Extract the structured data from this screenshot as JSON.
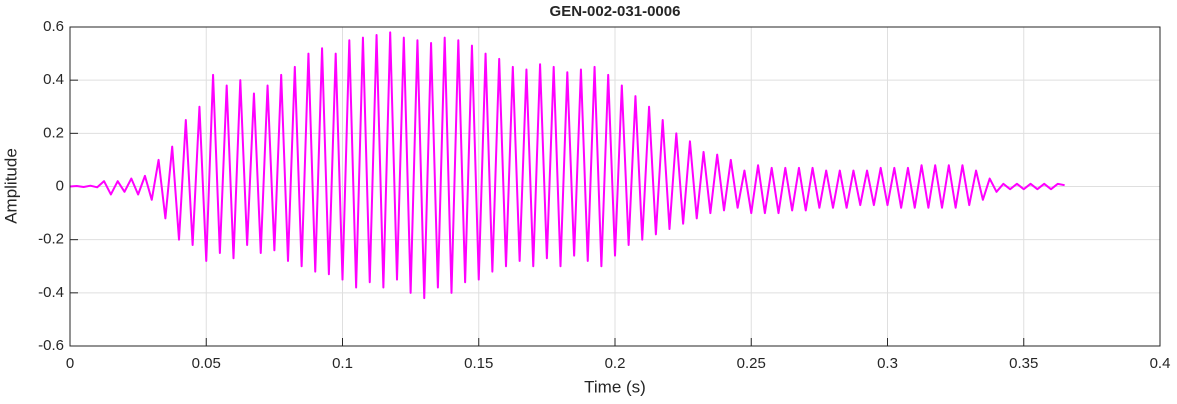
{
  "chart_data": {
    "type": "line",
    "title": "GEN-002-031-0006",
    "x_label": "Time (s)",
    "y_label": "Amplitude",
    "color": "#ff00ff",
    "grid": true,
    "xlim": [
      0,
      0.4
    ],
    "xticks": [
      0,
      0.05,
      0.1,
      0.15,
      0.2,
      0.25,
      0.3,
      0.35,
      0.4
    ],
    "ylim": [
      -0.6,
      0.6
    ],
    "yticks": [
      0.6,
      0.4,
      0.2,
      0,
      -0.2,
      -0.4,
      -0.6
    ],
    "x": [
      0,
      0.0025,
      0.005,
      0.0075,
      0.01,
      0.0125,
      0.015,
      0.0175,
      0.02,
      0.0225,
      0.025,
      0.0275,
      0.03,
      0.0325,
      0.035,
      0.0375,
      0.04,
      0.0425,
      0.045,
      0.0475,
      0.05,
      0.0525,
      0.055,
      0.0575,
      0.06,
      0.0625,
      0.065,
      0.0675,
      0.07,
      0.0725,
      0.075,
      0.0775,
      0.08,
      0.0825,
      0.085,
      0.0875,
      0.09,
      0.0925,
      0.095,
      0.0975,
      0.1,
      0.1025,
      0.105,
      0.1075,
      0.11,
      0.1125,
      0.115,
      0.1175,
      0.12,
      0.1225,
      0.125,
      0.1275,
      0.13,
      0.1325,
      0.135,
      0.1375,
      0.14,
      0.1425,
      0.145,
      0.1475,
      0.15,
      0.1525,
      0.155,
      0.1575,
      0.16,
      0.1625,
      0.165,
      0.1675,
      0.17,
      0.1725,
      0.175,
      0.1775,
      0.18,
      0.1825,
      0.185,
      0.1875,
      0.19,
      0.1925,
      0.195,
      0.1975,
      0.2,
      0.2025,
      0.205,
      0.2075,
      0.21,
      0.2125,
      0.215,
      0.2175,
      0.22,
      0.2225,
      0.225,
      0.2275,
      0.23,
      0.2325,
      0.235,
      0.2375,
      0.24,
      0.2425,
      0.245,
      0.2475,
      0.25,
      0.2525,
      0.255,
      0.2575,
      0.26,
      0.2625,
      0.265,
      0.2675,
      0.27,
      0.2725,
      0.275,
      0.2775,
      0.28,
      0.2825,
      0.285,
      0.2875,
      0.29,
      0.2925,
      0.295,
      0.2975,
      0.3,
      0.3025,
      0.305,
      0.3075,
      0.31,
      0.3125,
      0.315,
      0.3175,
      0.32,
      0.3225,
      0.325,
      0.3275,
      0.33,
      0.3325,
      0.335,
      0.3375,
      0.34,
      0.3425,
      0.345,
      0.3475,
      0.35,
      0.3525,
      0.355,
      0.3575,
      0.36,
      0.3625,
      0.365
    ],
    "values": [
      0,
      0.002,
      -0.002,
      0.003,
      -0.003,
      0.02,
      -0.03,
      0.02,
      -0.02,
      0.03,
      -0.03,
      0.04,
      -0.05,
      0.1,
      -0.12,
      0.15,
      -0.2,
      0.25,
      -0.22,
      0.3,
      -0.28,
      0.42,
      -0.25,
      0.38,
      -0.27,
      0.4,
      -0.22,
      0.35,
      -0.25,
      0.38,
      -0.24,
      0.42,
      -0.28,
      0.45,
      -0.3,
      0.5,
      -0.32,
      0.52,
      -0.33,
      0.5,
      -0.35,
      0.55,
      -0.38,
      0.56,
      -0.36,
      0.57,
      -0.38,
      0.58,
      -0.35,
      0.56,
      -0.4,
      0.55,
      -0.42,
      0.54,
      -0.38,
      0.56,
      -0.4,
      0.55,
      -0.36,
      0.53,
      -0.35,
      0.5,
      -0.32,
      0.48,
      -0.3,
      0.45,
      -0.28,
      0.44,
      -0.3,
      0.46,
      -0.27,
      0.45,
      -0.3,
      0.43,
      -0.26,
      0.44,
      -0.28,
      0.45,
      -0.3,
      0.42,
      -0.26,
      0.38,
      -0.22,
      0.34,
      -0.2,
      0.3,
      -0.18,
      0.25,
      -0.16,
      0.2,
      -0.14,
      0.17,
      -0.12,
      0.13,
      -0.1,
      0.12,
      -0.09,
      0.1,
      -0.08,
      0.06,
      -0.1,
      0.08,
      -0.1,
      0.07,
      -0.1,
      0.07,
      -0.09,
      0.07,
      -0.09,
      0.07,
      -0.08,
      0.06,
      -0.08,
      0.06,
      -0.08,
      0.06,
      -0.07,
      0.06,
      -0.07,
      0.07,
      -0.07,
      0.07,
      -0.08,
      0.07,
      -0.08,
      0.08,
      -0.08,
      0.08,
      -0.08,
      0.08,
      -0.08,
      0.08,
      -0.07,
      0.06,
      -0.05,
      0.03,
      -0.02,
      0.01,
      -0.01,
      0.01,
      -0.01,
      0.01,
      -0.01,
      0.01,
      -0.01,
      0.01,
      0.005
    ]
  }
}
